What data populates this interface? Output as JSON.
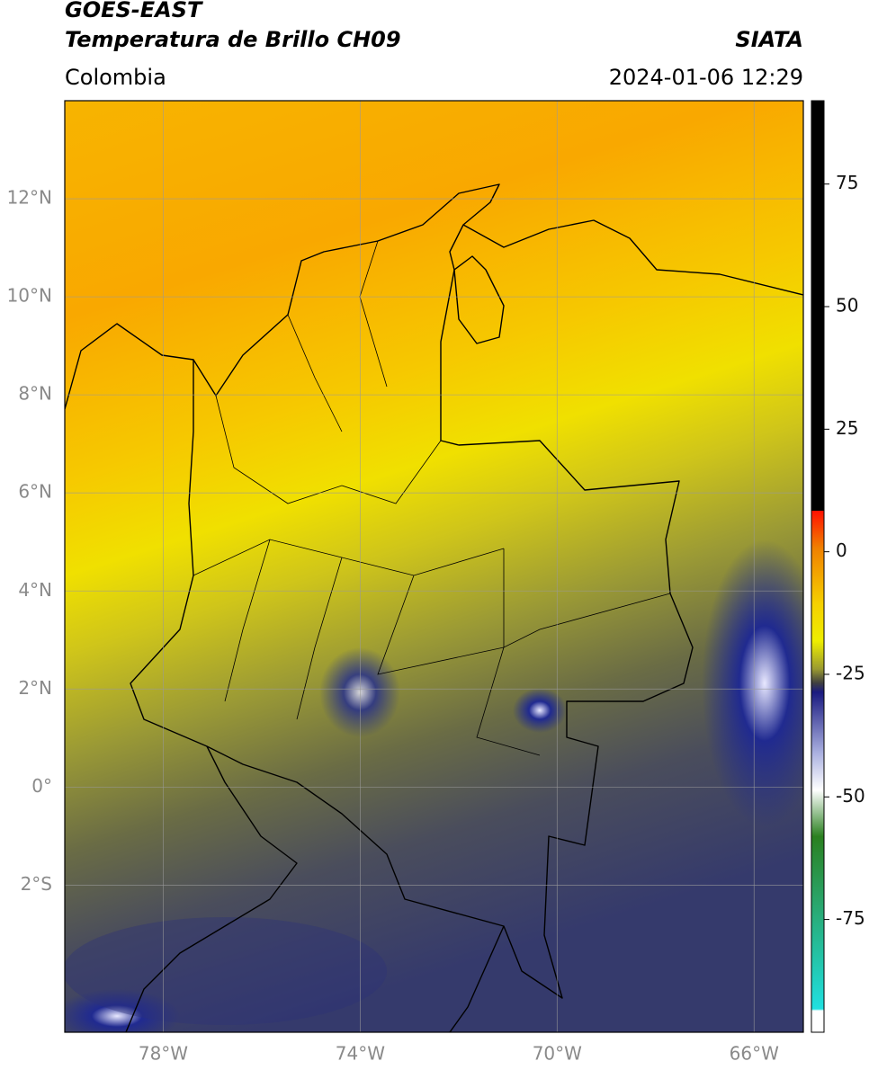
{
  "header": {
    "title": "GOES-EAST",
    "subtitle": "Temperatura de Brillo CH09",
    "region": "Colombia",
    "source": "SIATA",
    "datetime": "2024-01-06 12:29"
  },
  "map": {
    "lonlim": [
      -80,
      -65
    ],
    "latlim": [
      -5,
      14
    ],
    "lonticks": [
      {
        "value": -78,
        "label": "78°W"
      },
      {
        "value": -74,
        "label": "74°W"
      },
      {
        "value": -70,
        "label": "70°W"
      },
      {
        "value": -66,
        "label": "66°W"
      }
    ],
    "latticks": [
      {
        "value": 12,
        "label": "12°N"
      },
      {
        "value": 10,
        "label": "10°N"
      },
      {
        "value": 8,
        "label": "8°N"
      },
      {
        "value": 6,
        "label": "6°N"
      },
      {
        "value": 4,
        "label": "4°N"
      },
      {
        "value": 2,
        "label": "2°N"
      },
      {
        "value": 0,
        "label": "0°"
      },
      {
        "value": -2,
        "label": "2°S"
      }
    ]
  },
  "colorbar": {
    "lim": [
      -98,
      92
    ],
    "ticks": [
      75,
      50,
      25,
      0,
      -25,
      -50,
      -75
    ]
  }
}
